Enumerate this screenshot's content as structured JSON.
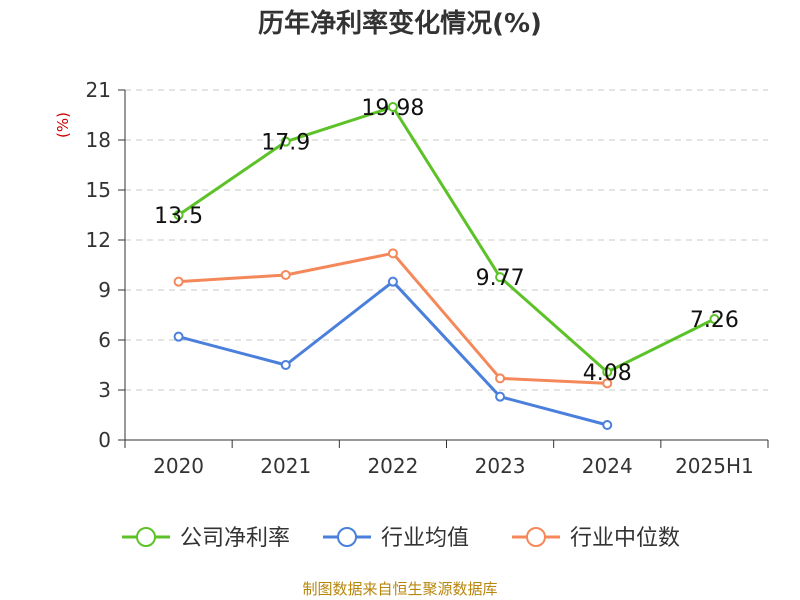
{
  "chart_data": {
    "type": "line",
    "title": "历年净利率变化情况(%)",
    "ylabel": "(%)",
    "xlabel": "",
    "categories": [
      "2020",
      "2021",
      "2022",
      "2023",
      "2024",
      "2025H1"
    ],
    "ylim": [
      0,
      21
    ],
    "yticks": [
      0,
      3,
      6,
      9,
      12,
      15,
      18,
      21
    ],
    "grid": true,
    "legend_position": "bottom",
    "series": [
      {
        "name": "公司净利率",
        "color": "#5cc227",
        "values": [
          13.5,
          17.9,
          19.98,
          9.77,
          4.08,
          7.26
        ],
        "labels": [
          "13.5",
          "17.9",
          "19.98",
          "9.77",
          "4.08",
          "7.26"
        ]
      },
      {
        "name": "行业均值",
        "color": "#4a7fdc",
        "values": [
          6.2,
          4.5,
          9.5,
          2.6,
          0.9,
          null
        ]
      },
      {
        "name": "行业中位数",
        "color": "#f5885a",
        "values": [
          9.5,
          9.9,
          11.2,
          3.7,
          3.4,
          null
        ]
      }
    ]
  },
  "source": "制图数据来自恒生聚源数据库"
}
